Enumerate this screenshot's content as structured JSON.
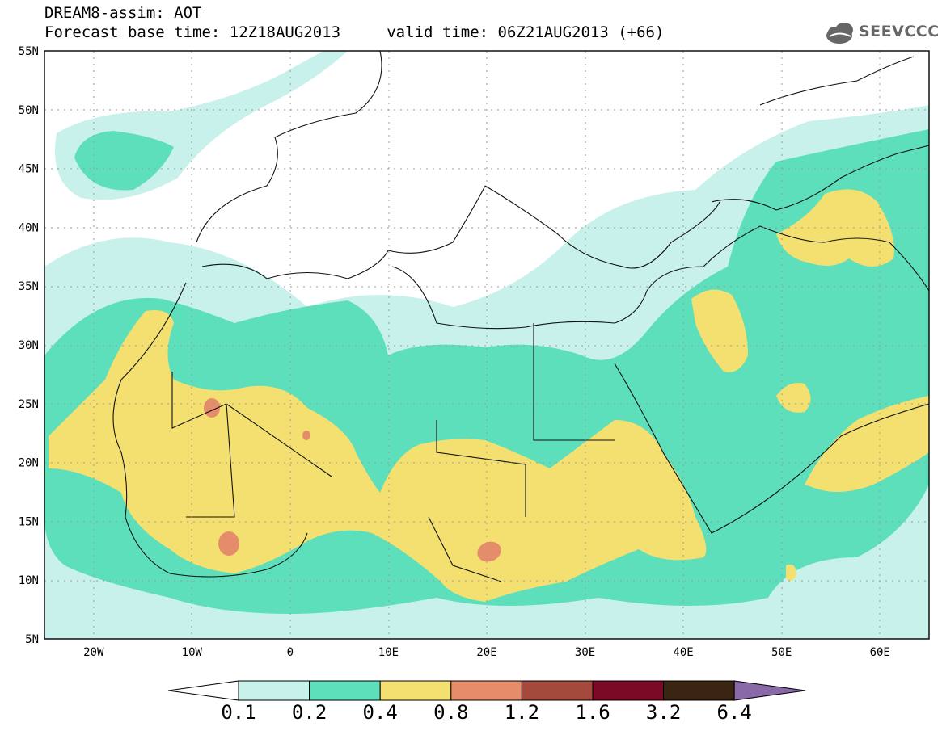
{
  "header": {
    "title_line1": "DREAM8-assim: AOT",
    "title_line2": "Forecast base time: 12Z18AUG2013     valid time: 06Z21AUG2013 (+66)"
  },
  "logo": {
    "text": "SEEVCCC",
    "icon": "cloud-icon"
  },
  "map": {
    "projection": "lat-lon",
    "lon_range": [
      -25,
      65
    ],
    "lat_range": [
      5,
      55
    ],
    "grid": "dotted",
    "lat_ticks": [
      "55N",
      "50N",
      "45N",
      "40N",
      "35N",
      "30N",
      "25N",
      "20N",
      "15N",
      "10N",
      "5N"
    ],
    "lon_ticks": [
      "20W",
      "10W",
      "0",
      "10E",
      "20E",
      "30E",
      "40E",
      "50E",
      "60E"
    ]
  },
  "colorbar": {
    "labels": [
      "0.1",
      "0.2",
      "0.4",
      "0.8",
      "1.2",
      "1.6",
      "3.2",
      "6.4"
    ],
    "colors": [
      "#ffffff",
      "#c8f1ec",
      "#5ddfbc",
      "#f4e070",
      "#e58c6a",
      "#a34a3c",
      "#7a0a26",
      "#3a2412",
      "#8a69a8"
    ]
  },
  "fields": {
    "level_colors": {
      "0.1": "#c8f1ec",
      "0.2": "#5ddfbc",
      "0.4": "#f4e070",
      "0.8": "#e58c6a"
    }
  }
}
